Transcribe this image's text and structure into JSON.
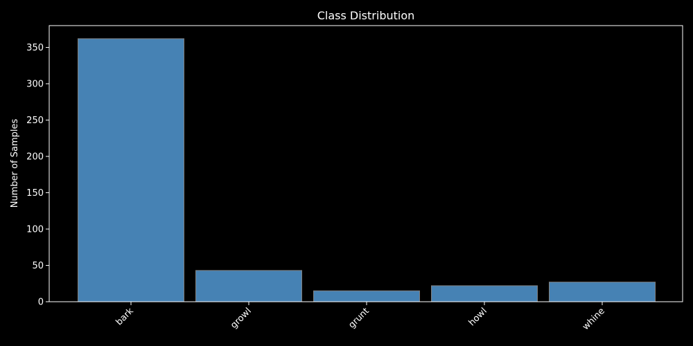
{
  "chart_data": {
    "type": "bar",
    "title": "Class Distribution",
    "xlabel": "",
    "ylabel": "Number of Samples",
    "categories": [
      "bark",
      "growl",
      "grunt",
      "howl",
      "whine"
    ],
    "values": [
      362,
      43,
      15,
      22,
      27
    ],
    "ylim": [
      0,
      380
    ],
    "yticks": [
      0,
      50,
      100,
      150,
      200,
      250,
      300,
      350
    ],
    "grid": false,
    "legend": "none",
    "colors": {
      "background": "#000000",
      "bar_fill": "#4682b4",
      "bar_edge": "#808080",
      "axis": "#ffffff",
      "text": "#ffffff"
    }
  }
}
